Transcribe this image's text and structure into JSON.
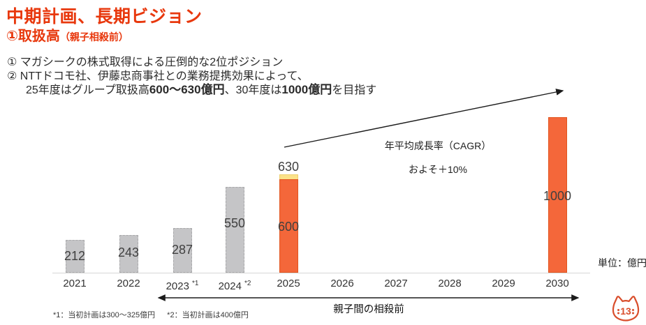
{
  "slide": {
    "title": "中期計画、長期ビジョン",
    "subtitle": "①取扱高",
    "subtitle_note": "（親子相殺前）",
    "bullet1": "① マガシークの株式取得による圧倒的な2位ポジション",
    "bullet2": "② NTTドコモ社、伊藤忠商事社との業務提携効果によって、",
    "bullet3_pre": "25年度はグループ取扱高",
    "bullet3_strong1": "600～630億円",
    "bullet3_mid": "、30年度は",
    "bullet3_strong2": "1000億円",
    "bullet3_post": "を目指す"
  },
  "chart_data": {
    "type": "bar",
    "title": "取扱高（親子相殺前）",
    "unit_label": "単位：億円",
    "categories": [
      "2021",
      "2022",
      "2023",
      "2024",
      "2025",
      "2026",
      "2027",
      "2028",
      "2029",
      "2030"
    ],
    "category_notes": [
      "",
      "",
      "*1",
      "*2",
      "",
      "",
      "",
      "",
      "",
      ""
    ],
    "ylim": [
      0,
      1050
    ],
    "grid": false,
    "bars": [
      {
        "category": "2021",
        "value": 212,
        "style": "actual",
        "labels": [
          "212"
        ]
      },
      {
        "category": "2022",
        "value": 243,
        "style": "actual",
        "labels": [
          "243"
        ]
      },
      {
        "category": "2023",
        "value": 287,
        "style": "actual",
        "labels": [
          "287"
        ]
      },
      {
        "category": "2024",
        "value": 550,
        "style": "actual",
        "labels": [
          "550"
        ]
      },
      {
        "category": "2025",
        "value_low": 600,
        "value_high": 630,
        "style": "plan_range",
        "labels": [
          "630",
          "600"
        ]
      },
      {
        "category": "2030",
        "value": 1000,
        "style": "plan",
        "labels": [
          "1000"
        ]
      }
    ],
    "annotations": {
      "cagr_title": "年平均成長率（CAGR）",
      "cagr_value": "およそ＋10%",
      "range_label": "親子間の相殺前"
    },
    "footnote1": "*1：当初計画は300～325億円",
    "footnote2": "*2：当初計画は400億円",
    "page_number": "13",
    "colors": {
      "accent_red": "#E8380D",
      "actual_bar": "#C5C5C7",
      "plan_bar": "#F4673A",
      "range_cap": "#FBE289"
    }
  }
}
